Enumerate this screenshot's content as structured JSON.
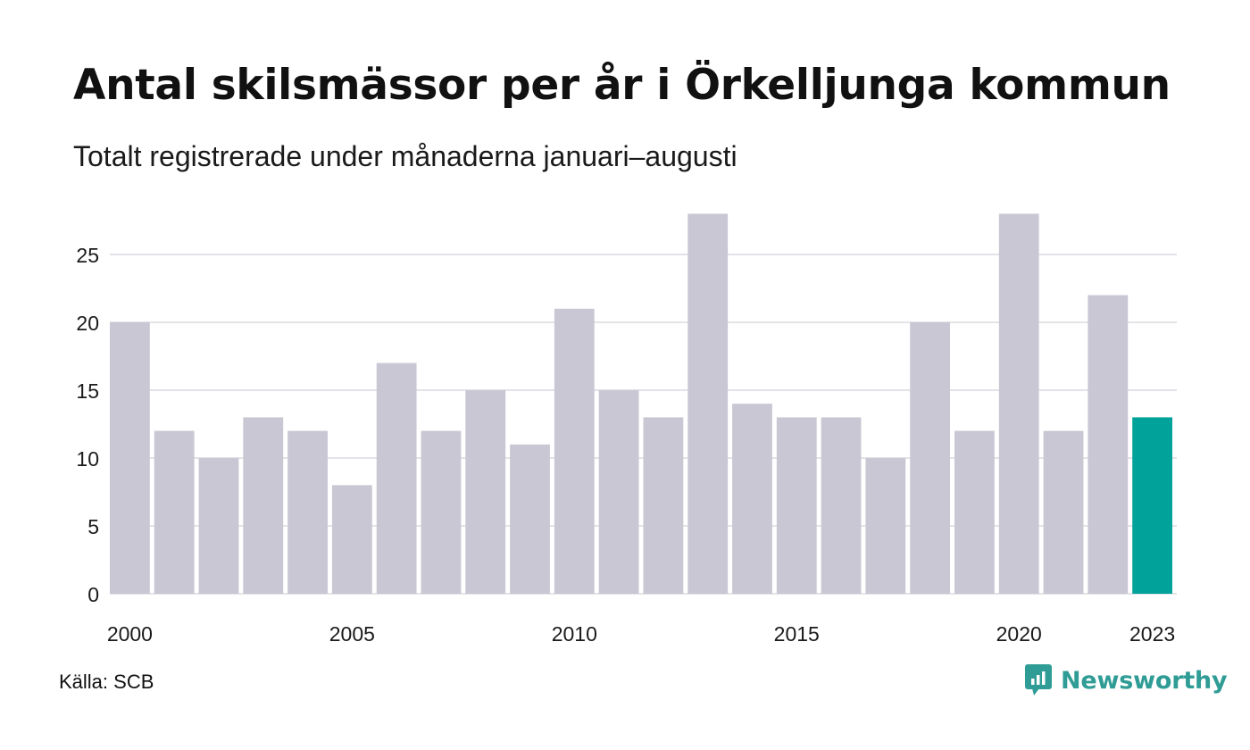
{
  "title": "Antal skilsmässor per år i Örkelljunga kommun",
  "subtitle": "Totalt registrerade under månaderna januari–augusti",
  "source": "Källa: SCB",
  "brand": {
    "name": "Newsworthy",
    "icon": "newsworthy-logo-icon",
    "color": "#2f9c95"
  },
  "chart_data": {
    "type": "bar",
    "categories": [
      "2000",
      "2001",
      "2002",
      "2003",
      "2004",
      "2005",
      "2006",
      "2007",
      "2008",
      "2009",
      "2010",
      "2011",
      "2012",
      "2013",
      "2014",
      "2015",
      "2016",
      "2017",
      "2018",
      "2019",
      "2020",
      "2021",
      "2022",
      "2023"
    ],
    "values": [
      20,
      12,
      10,
      13,
      12,
      8,
      17,
      12,
      15,
      11,
      21,
      15,
      13,
      28,
      14,
      13,
      13,
      10,
      20,
      12,
      28,
      12,
      22,
      13
    ],
    "x_tick_labels": [
      "2000",
      "2005",
      "2010",
      "2015",
      "2020",
      "2023"
    ],
    "y_ticks": [
      0,
      5,
      10,
      15,
      20,
      25
    ],
    "ylim": [
      0,
      28
    ],
    "grid": "horizontal",
    "colors": {
      "default": "#c8c7d3",
      "highlight": "#00a29a"
    },
    "highlight_category": "2023"
  }
}
